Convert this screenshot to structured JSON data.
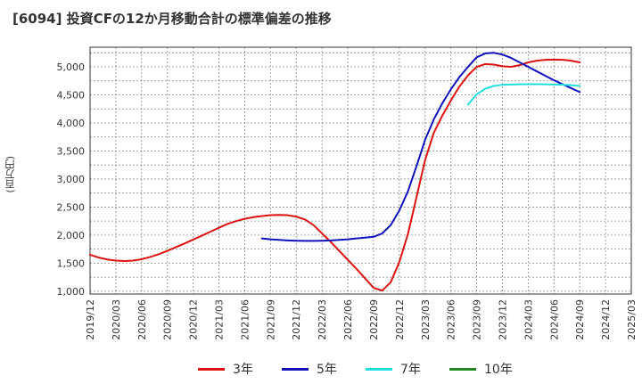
{
  "title": "[6094]  投資CFの12か月移動合計の標準偏差の推移",
  "unit_label": "(百万円)",
  "chart_data": {
    "type": "line",
    "title": "[6094]  投資CFの12か月移動合計の標準偏差の推移",
    "ylabel": "(百万円)",
    "xlabel": "",
    "ylim": [
      950,
      5350
    ],
    "yticks": [
      1000,
      1500,
      2000,
      2500,
      3000,
      3500,
      4000,
      4500,
      5000
    ],
    "ytick_labels": [
      "1,000",
      "1,500",
      "2,000",
      "2,500",
      "3,000",
      "3,500",
      "4,000",
      "4,500",
      "5,000"
    ],
    "xticks": [
      "2019/12",
      "2020/03",
      "2020/06",
      "2020/09",
      "2020/12",
      "2021/03",
      "2021/06",
      "2021/09",
      "2021/12",
      "2022/03",
      "2022/06",
      "2022/09",
      "2022/12",
      "2023/03",
      "2023/06",
      "2023/09",
      "2023/12",
      "2024/03",
      "2024/06",
      "2024/09",
      "2024/12",
      "2025/03"
    ],
    "grid": true,
    "legend_position": "bottom",
    "series": [
      {
        "name": "3年",
        "color": "#dd1111",
        "points": [
          [
            "2019/12",
            1650
          ],
          [
            "2020/01",
            1600
          ],
          [
            "2020/02",
            1565
          ],
          [
            "2020/03",
            1545
          ],
          [
            "2020/04",
            1538
          ],
          [
            "2020/05",
            1545
          ],
          [
            "2020/06",
            1570
          ],
          [
            "2020/07",
            1610
          ],
          [
            "2020/08",
            1660
          ],
          [
            "2020/09",
            1720
          ],
          [
            "2020/10",
            1785
          ],
          [
            "2020/11",
            1850
          ],
          [
            "2020/12",
            1920
          ],
          [
            "2021/01",
            1990
          ],
          [
            "2021/02",
            2060
          ],
          [
            "2021/03",
            2130
          ],
          [
            "2021/04",
            2200
          ],
          [
            "2021/05",
            2250
          ],
          [
            "2021/06",
            2290
          ],
          [
            "2021/07",
            2320
          ],
          [
            "2021/08",
            2340
          ],
          [
            "2021/09",
            2355
          ],
          [
            "2021/10",
            2360
          ],
          [
            "2021/11",
            2355
          ],
          [
            "2021/12",
            2330
          ],
          [
            "2022/01",
            2280
          ],
          [
            "2022/02",
            2180
          ],
          [
            "2022/03",
            2030
          ],
          [
            "2022/04",
            1880
          ],
          [
            "2022/05",
            1720
          ],
          [
            "2022/06",
            1560
          ],
          [
            "2022/07",
            1400
          ],
          [
            "2022/08",
            1230
          ],
          [
            "2022/09",
            1060
          ],
          [
            "2022/10",
            1010
          ],
          [
            "2022/11",
            1160
          ],
          [
            "2022/12",
            1520
          ],
          [
            "2023/01",
            2020
          ],
          [
            "2023/02",
            2680
          ],
          [
            "2023/03",
            3340
          ],
          [
            "2023/04",
            3820
          ],
          [
            "2023/05",
            4130
          ],
          [
            "2023/06",
            4400
          ],
          [
            "2023/07",
            4650
          ],
          [
            "2023/08",
            4850
          ],
          [
            "2023/09",
            5000
          ],
          [
            "2023/10",
            5050
          ],
          [
            "2023/11",
            5040
          ],
          [
            "2023/12",
            5010
          ],
          [
            "2024/01",
            5000
          ],
          [
            "2024/02",
            5030
          ],
          [
            "2024/03",
            5080
          ],
          [
            "2024/04",
            5110
          ],
          [
            "2024/05",
            5125
          ],
          [
            "2024/06",
            5130
          ],
          [
            "2024/07",
            5125
          ],
          [
            "2024/08",
            5110
          ],
          [
            "2024/09",
            5080
          ]
        ]
      },
      {
        "name": "5年",
        "color": "#1111bb",
        "points": [
          [
            "2021/08",
            1940
          ],
          [
            "2021/09",
            1925
          ],
          [
            "2021/10",
            1915
          ],
          [
            "2021/11",
            1905
          ],
          [
            "2021/12",
            1900
          ],
          [
            "2022/01",
            1898
          ],
          [
            "2022/02",
            1898
          ],
          [
            "2022/03",
            1900
          ],
          [
            "2022/04",
            1905
          ],
          [
            "2022/05",
            1915
          ],
          [
            "2022/06",
            1925
          ],
          [
            "2022/07",
            1940
          ],
          [
            "2022/08",
            1955
          ],
          [
            "2022/09",
            1970
          ],
          [
            "2022/10",
            2030
          ],
          [
            "2022/11",
            2180
          ],
          [
            "2022/12",
            2440
          ],
          [
            "2023/01",
            2780
          ],
          [
            "2023/02",
            3230
          ],
          [
            "2023/03",
            3700
          ],
          [
            "2023/04",
            4060
          ],
          [
            "2023/05",
            4350
          ],
          [
            "2023/06",
            4600
          ],
          [
            "2023/07",
            4820
          ],
          [
            "2023/08",
            5000
          ],
          [
            "2023/09",
            5170
          ],
          [
            "2023/10",
            5240
          ],
          [
            "2023/11",
            5250
          ],
          [
            "2023/12",
            5220
          ],
          [
            "2024/01",
            5160
          ],
          [
            "2024/02",
            5080
          ],
          [
            "2024/03",
            5000
          ],
          [
            "2024/04",
            4920
          ],
          [
            "2024/05",
            4840
          ],
          [
            "2024/06",
            4760
          ],
          [
            "2024/07",
            4690
          ],
          [
            "2024/08",
            4620
          ],
          [
            "2024/09",
            4550
          ]
        ]
      },
      {
        "name": "7年",
        "color": "#22dddd",
        "points": [
          [
            "2023/08",
            4330
          ],
          [
            "2023/09",
            4510
          ],
          [
            "2023/10",
            4610
          ],
          [
            "2023/11",
            4660
          ],
          [
            "2023/12",
            4680
          ],
          [
            "2024/01",
            4685
          ],
          [
            "2024/02",
            4688
          ],
          [
            "2024/03",
            4690
          ],
          [
            "2024/04",
            4690
          ],
          [
            "2024/05",
            4688
          ],
          [
            "2024/06",
            4685
          ],
          [
            "2024/07",
            4680
          ],
          [
            "2024/08",
            4672
          ],
          [
            "2024/09",
            4660
          ]
        ]
      },
      {
        "name": "10年",
        "color": "#228822",
        "points": []
      }
    ]
  }
}
